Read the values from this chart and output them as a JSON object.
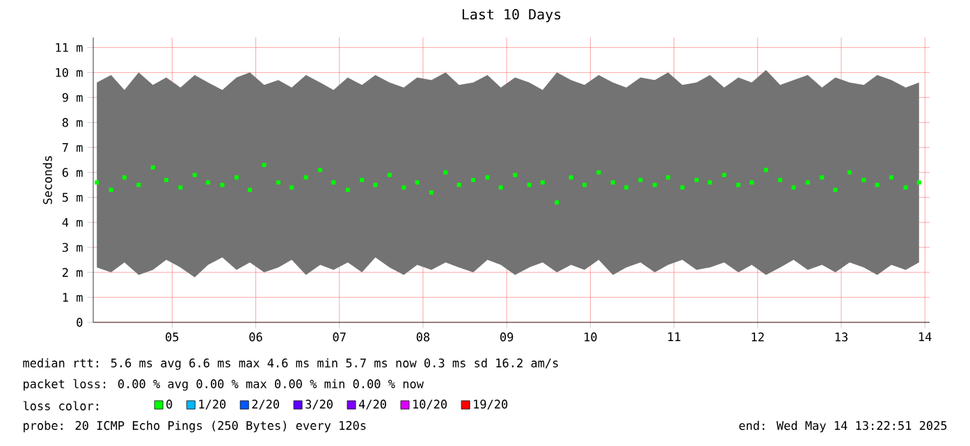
{
  "chart_data": {
    "type": "scatter",
    "title": "Last 10 Days",
    "ylabel": "Seconds",
    "x": [
      4.6,
      4.77,
      4.93,
      5.1,
      5.27,
      5.43,
      5.6,
      5.77,
      5.93,
      6.1,
      6.27,
      6.43,
      6.6,
      6.77,
      6.93,
      7.1,
      7.27,
      7.43,
      7.6,
      7.77,
      7.93,
      8.1,
      8.27,
      8.43,
      8.6,
      8.77,
      8.93,
      9.1,
      9.27,
      9.43,
      9.6,
      9.77,
      9.93,
      10.1,
      10.27,
      10.43,
      10.6,
      10.77,
      10.93,
      11.1,
      11.27,
      11.43,
      11.6,
      11.77,
      11.93,
      12.1,
      12.27,
      12.43,
      12.6,
      12.77,
      12.93,
      13.1,
      13.27,
      13.43,
      13.6,
      13.77,
      13.93,
      14.1,
      14.27,
      14.43
    ],
    "series": [
      {
        "name": "0",
        "color": "#00ff00",
        "values": [
          5.6,
          5.3,
          5.8,
          5.5,
          6.2,
          5.7,
          5.4,
          5.9,
          5.6,
          5.5,
          5.8,
          5.3,
          6.3,
          5.6,
          5.4,
          5.8,
          6.1,
          5.6,
          5.3,
          5.7,
          5.5,
          5.9,
          5.4,
          5.6,
          5.2,
          6.0,
          5.5,
          5.7,
          5.8,
          5.4,
          5.9,
          5.5,
          5.6,
          4.8,
          5.8,
          5.5,
          6.0,
          5.6,
          5.4,
          5.7,
          5.5,
          5.8,
          5.4,
          5.7,
          5.6,
          5.9,
          5.5,
          5.6,
          6.1,
          5.7,
          5.4,
          5.6,
          5.8,
          5.3,
          6.0,
          5.7,
          5.5,
          5.8,
          5.4,
          5.6
        ],
        "lower": [
          2.2,
          2.0,
          2.4,
          1.9,
          2.1,
          2.5,
          2.2,
          1.8,
          2.3,
          2.6,
          2.1,
          2.4,
          2.0,
          2.2,
          2.5,
          1.9,
          2.3,
          2.1,
          2.4,
          2.0,
          2.6,
          2.2,
          1.9,
          2.3,
          2.1,
          2.4,
          2.2,
          2.0,
          2.5,
          2.3,
          1.9,
          2.2,
          2.4,
          2.0,
          2.3,
          2.1,
          2.5,
          1.9,
          2.2,
          2.4,
          2.0,
          2.3,
          2.5,
          2.1,
          2.2,
          2.4,
          2.0,
          2.3,
          1.9,
          2.2,
          2.5,
          2.1,
          2.3,
          2.0,
          2.4,
          2.2,
          1.9,
          2.3,
          2.1,
          2.4
        ],
        "upper": [
          9.6,
          9.9,
          9.3,
          10.0,
          9.5,
          9.8,
          9.4,
          9.9,
          9.6,
          9.3,
          9.8,
          10.0,
          9.5,
          9.7,
          9.4,
          9.9,
          9.6,
          9.3,
          9.8,
          9.5,
          9.9,
          9.6,
          9.4,
          9.8,
          9.7,
          10.0,
          9.5,
          9.6,
          9.9,
          9.4,
          9.8,
          9.6,
          9.3,
          10.0,
          9.7,
          9.5,
          9.9,
          9.6,
          9.4,
          9.8,
          9.7,
          10.0,
          9.5,
          9.6,
          9.9,
          9.4,
          9.8,
          9.6,
          10.1,
          9.5,
          9.7,
          9.9,
          9.4,
          9.8,
          9.6,
          9.5,
          9.9,
          9.7,
          9.4,
          9.6
        ]
      },
      {
        "name": "1/20",
        "color": "#00b8ff",
        "values": [
          null,
          null,
          null,
          null,
          null,
          null,
          null,
          null,
          null,
          null,
          null,
          null,
          null,
          null,
          null,
          null,
          null,
          null,
          null,
          null,
          null,
          null,
          null,
          null,
          null,
          null,
          null,
          null,
          null,
          null,
          null,
          null,
          null,
          null,
          null,
          null,
          null,
          null,
          null,
          null,
          null,
          null,
          null,
          null,
          null,
          null,
          null,
          null,
          null,
          null,
          null,
          null,
          null,
          null,
          null,
          null,
          null,
          null,
          null,
          null
        ]
      },
      {
        "name": "2/20",
        "color": "#0059ff",
        "values": [
          null,
          null,
          null,
          null,
          null,
          null,
          null,
          null,
          null,
          null,
          null,
          null,
          null,
          null,
          null,
          null,
          null,
          null,
          null,
          null,
          null,
          null,
          null,
          null,
          null,
          null,
          null,
          null,
          null,
          null,
          null,
          null,
          null,
          null,
          null,
          null,
          null,
          null,
          null,
          null,
          null,
          null,
          null,
          null,
          null,
          null,
          null,
          null,
          null,
          null,
          null,
          null,
          null,
          null,
          null,
          null,
          null,
          null,
          null,
          null
        ]
      },
      {
        "name": "3/20",
        "color": "#5e00ff",
        "values": [
          null,
          null,
          null,
          null,
          null,
          null,
          null,
          null,
          null,
          null,
          null,
          null,
          null,
          null,
          null,
          null,
          null,
          null,
          null,
          null,
          null,
          null,
          null,
          null,
          null,
          null,
          null,
          null,
          null,
          null,
          null,
          null,
          null,
          null,
          null,
          null,
          null,
          null,
          null,
          null,
          null,
          null,
          null,
          null,
          null,
          null,
          null,
          null,
          null,
          null,
          null,
          null,
          null,
          null,
          null,
          null,
          null,
          null,
          null,
          null
        ]
      },
      {
        "name": "4/20",
        "color": "#7e00ff",
        "values": [
          null,
          null,
          null,
          null,
          null,
          null,
          null,
          null,
          null,
          null,
          null,
          null,
          null,
          null,
          null,
          null,
          null,
          null,
          null,
          null,
          null,
          null,
          null,
          null,
          null,
          null,
          null,
          null,
          null,
          null,
          null,
          null,
          null,
          null,
          null,
          null,
          null,
          null,
          null,
          null,
          null,
          null,
          null,
          null,
          null,
          null,
          null,
          null,
          null,
          null,
          null,
          null,
          null,
          null,
          null,
          null,
          null,
          null,
          null,
          null
        ]
      },
      {
        "name": "10/20",
        "color": "#dd00ff",
        "values": [
          null,
          null,
          null,
          null,
          null,
          null,
          null,
          null,
          null,
          null,
          null,
          null,
          null,
          null,
          null,
          null,
          null,
          null,
          null,
          null,
          null,
          null,
          null,
          null,
          null,
          null,
          null,
          null,
          null,
          null,
          null,
          null,
          null,
          null,
          null,
          null,
          null,
          null,
          null,
          null,
          null,
          null,
          null,
          null,
          null,
          null,
          null,
          null,
          null,
          null,
          null,
          null,
          null,
          null,
          null,
          null,
          null,
          null,
          null,
          null
        ]
      },
      {
        "name": "19/20",
        "color": "#ff0000",
        "values": [
          null,
          null,
          null,
          null,
          null,
          null,
          null,
          null,
          null,
          null,
          null,
          null,
          null,
          null,
          null,
          null,
          null,
          null,
          null,
          null,
          null,
          null,
          null,
          null,
          null,
          null,
          null,
          null,
          null,
          null,
          null,
          null,
          null,
          null,
          null,
          null,
          null,
          null,
          null,
          null,
          null,
          null,
          null,
          null,
          null,
          null,
          null,
          null,
          null,
          null,
          null,
          null,
          null,
          null,
          null,
          null,
          null,
          null,
          null,
          null
        ]
      }
    ],
    "legend_title": "loss color:",
    "legend": "bottom",
    "marker": "square",
    "grid": true,
    "xlim": [
      4.557,
      14.557
    ],
    "xticks": [
      {
        "value": 5.5,
        "label": "05"
      },
      {
        "value": 6.5,
        "label": "06"
      },
      {
        "value": 7.5,
        "label": "07"
      },
      {
        "value": 8.5,
        "label": "08"
      },
      {
        "value": 9.5,
        "label": "09"
      },
      {
        "value": 10.5,
        "label": "10"
      },
      {
        "value": 11.5,
        "label": "11"
      },
      {
        "value": 12.5,
        "label": "12"
      },
      {
        "value": 13.5,
        "label": "13"
      },
      {
        "value": 14.5,
        "label": "14"
      }
    ],
    "ylim": [
      0,
      11.4
    ],
    "yticks": [
      {
        "value": 0,
        "label": "0"
      },
      {
        "value": 1,
        "label": "1 m"
      },
      {
        "value": 2,
        "label": "2 m"
      },
      {
        "value": 3,
        "label": "3 m"
      },
      {
        "value": 4,
        "label": "4 m"
      },
      {
        "value": 5,
        "label": "5 m"
      },
      {
        "value": 6,
        "label": "6 m"
      },
      {
        "value": 7,
        "label": "7 m"
      },
      {
        "value": 8,
        "label": "8 m"
      },
      {
        "value": 9,
        "label": "9 m"
      },
      {
        "value": 10,
        "label": "10 m"
      },
      {
        "value": 11,
        "label": "11 m"
      }
    ],
    "annotations": [
      "median rtt:  5.6 ms avg  6.6 ms max  4.6 ms min  5.7 ms now  0.3 ms sd  16.2  am/s",
      "packet loss: 0.00 % avg  0.00 % max  0.00 % min  0.00 % now",
      "probe:       20 ICMP Echo Pings (250 Bytes) every 120s",
      "end: Wed May 14 13:22:51 2025"
    ]
  }
}
